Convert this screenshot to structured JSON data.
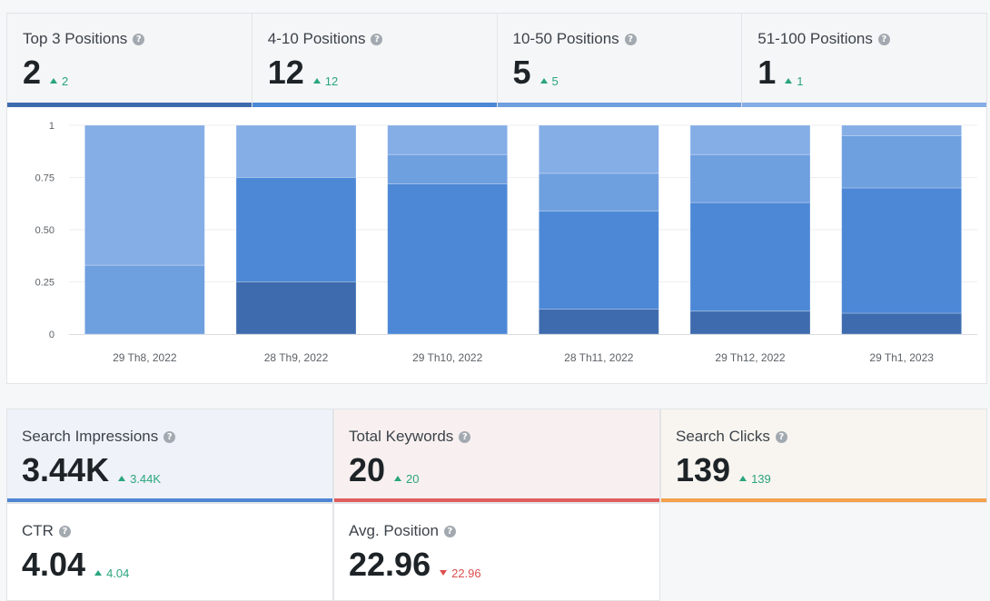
{
  "positions": [
    {
      "label": "Top 3 Positions",
      "value": "2",
      "delta": "2",
      "trend": "up",
      "bar_color": "#3e6bad"
    },
    {
      "label": "4-10 Positions",
      "value": "12",
      "delta": "12",
      "trend": "up",
      "bar_color": "#4c88d6"
    },
    {
      "label": "10-50 Positions",
      "value": "5",
      "delta": "5",
      "trend": "up",
      "bar_color": "#6e9fdf"
    },
    {
      "label": "51-100 Positions",
      "value": "1",
      "delta": "1",
      "trend": "up",
      "bar_color": "#85ade6"
    }
  ],
  "chart_data": {
    "type": "bar",
    "stacked": true,
    "categories": [
      "29 Th8, 2022",
      "28 Th9, 2022",
      "29 Th10, 2022",
      "28 Th11, 2022",
      "29 Th12, 2022",
      "29 Th1, 2023"
    ],
    "series": [
      {
        "values": [
          0,
          0.25,
          0,
          0.12,
          0.11,
          0.1
        ],
        "color": "#3e6bad"
      },
      {
        "values": [
          0,
          0.5,
          0.72,
          0.47,
          0.52,
          0.6
        ],
        "color": "#4c88d6"
      },
      {
        "values": [
          0.33,
          0,
          0.14,
          0.18,
          0.23,
          0.25
        ],
        "color": "#6e9fdf"
      },
      {
        "values": [
          0.67,
          0.25,
          0.14,
          0.23,
          0.14,
          0.05
        ],
        "color": "#85ade6"
      }
    ],
    "yticks": [
      "0",
      "0.25",
      "0.50",
      "0.75",
      "1"
    ],
    "ylim": [
      0,
      1
    ],
    "grid": true
  },
  "stats": [
    {
      "label": "Search Impressions",
      "value": "3.44K",
      "delta": "3.44K",
      "trend": "up",
      "bg": "#eff2f8",
      "bar_color": "#4e86d4"
    },
    {
      "label": "Total Keywords",
      "value": "20",
      "delta": "20",
      "trend": "up",
      "bg": "#f8f0f0",
      "bar_color": "#e05d5d"
    },
    {
      "label": "Search Clicks",
      "value": "139",
      "delta": "139",
      "trend": "up",
      "bg": "#f8f5f0",
      "bar_color": "#f5a04b"
    },
    {
      "label": "CTR",
      "value": "4.04",
      "delta": "4.04",
      "trend": "up",
      "bg": "#ffffff",
      "bar_color": ""
    },
    {
      "label": "Avg. Position",
      "value": "22.96",
      "delta": "22.96",
      "trend": "down",
      "bg": "#ffffff",
      "bar_color": ""
    }
  ]
}
